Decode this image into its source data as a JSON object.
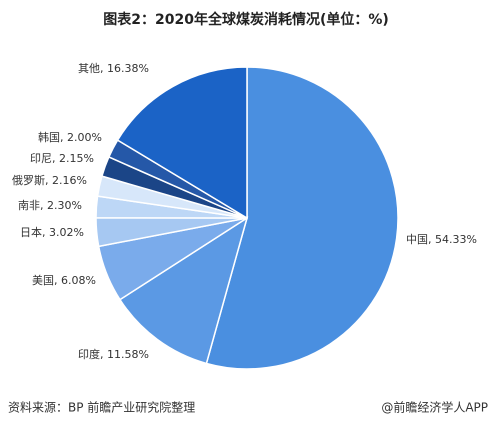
{
  "chart_data": {
    "type": "pie",
    "title": "图表2：2020年全球煤炭消耗情况(单位：%)",
    "categories": [
      "中国",
      "印度",
      "美国",
      "日本",
      "南非",
      "俄罗斯",
      "印尼",
      "韩国",
      "其他"
    ],
    "values": [
      54.33,
      11.58,
      6.08,
      3.02,
      2.3,
      2.16,
      2.15,
      2.0,
      16.38
    ],
    "value_labels": [
      ", 54.33%",
      ", 11.58%",
      ", 6.08%",
      ", 3.02%",
      ", 2.30%",
      ", 2.16%",
      ", 2.15%",
      ", 2.00%",
      ", 16.38%"
    ],
    "colors": [
      "#4a8fe0",
      "#5b99e4",
      "#7aabeb",
      "#a6c8f2",
      "#bdd7f6",
      "#d7e7fa",
      "#1b4587",
      "#2558a8",
      "#1b63c6"
    ],
    "source": "资料来源：BP 前瞻产业研究院整理",
    "credit": "@前瞻经济学人APP"
  }
}
